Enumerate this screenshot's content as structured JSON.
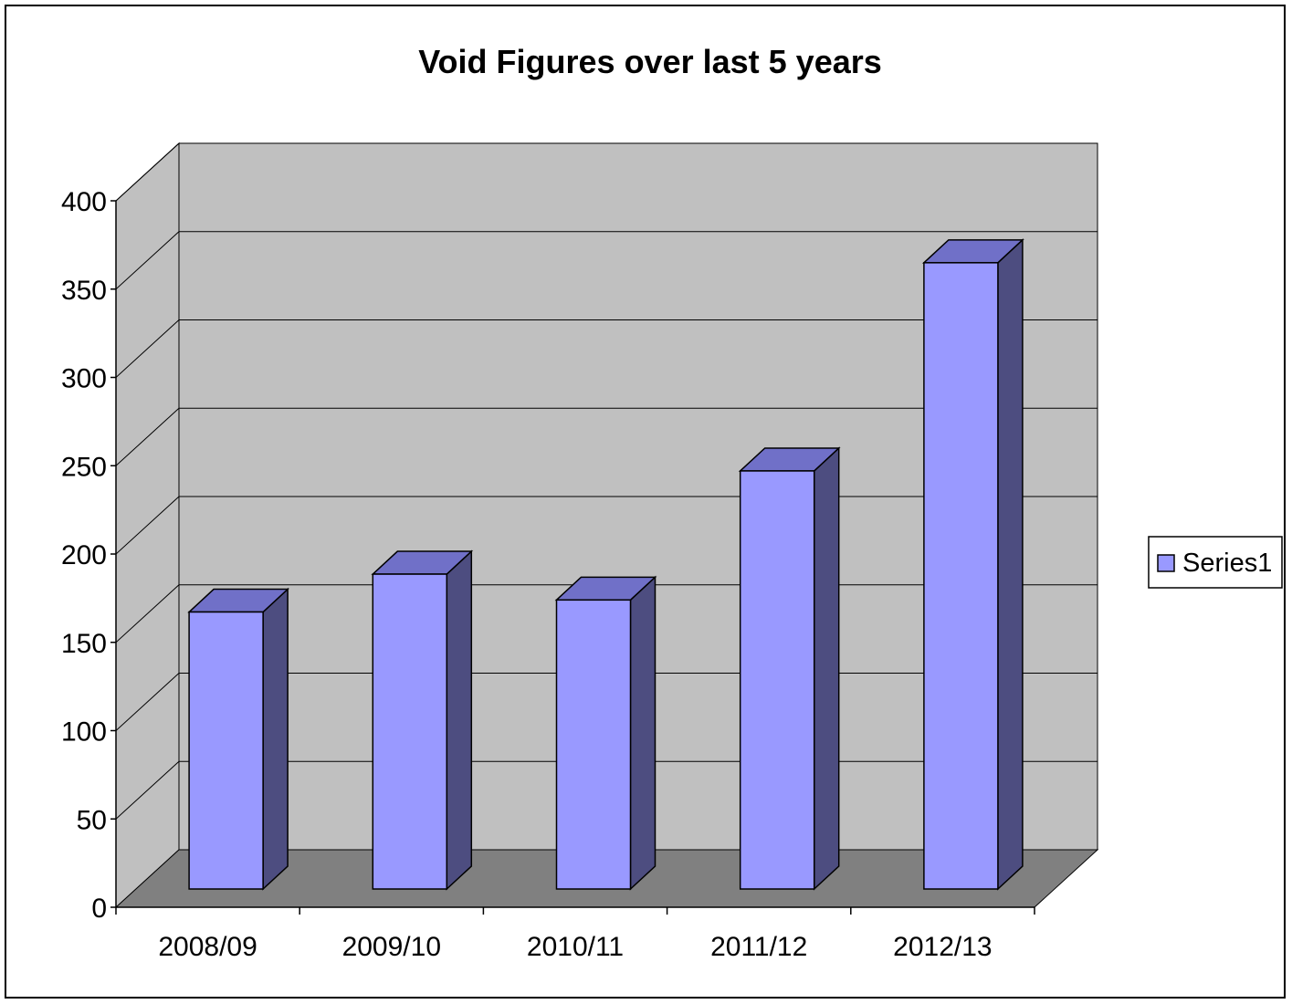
{
  "chart_data": {
    "type": "bar",
    "title": "Void Figures over last 5 years",
    "xlabel": "",
    "ylabel": "",
    "categories": [
      "2008/09",
      "2009/10",
      "2010/11",
      "2011/12",
      "2012/13"
    ],
    "series": [
      {
        "name": "Series1",
        "values": [
          161,
          183,
          168,
          243,
          364
        ]
      }
    ],
    "ylim": [
      0,
      400
    ],
    "yticks": [
      "0",
      "50",
      "100",
      "150",
      "200",
      "250",
      "300",
      "350",
      "400"
    ],
    "grid": true,
    "three_d": true,
    "legend_position": "right",
    "colors": {
      "bar_front": "#9999ff",
      "bar_top": "#7070c8",
      "bar_side": "#4d4d80",
      "back_wall": "#c0c0c0",
      "side_wall": "#c0c0c0",
      "floor": "#808080",
      "gridline": "#000000"
    }
  }
}
